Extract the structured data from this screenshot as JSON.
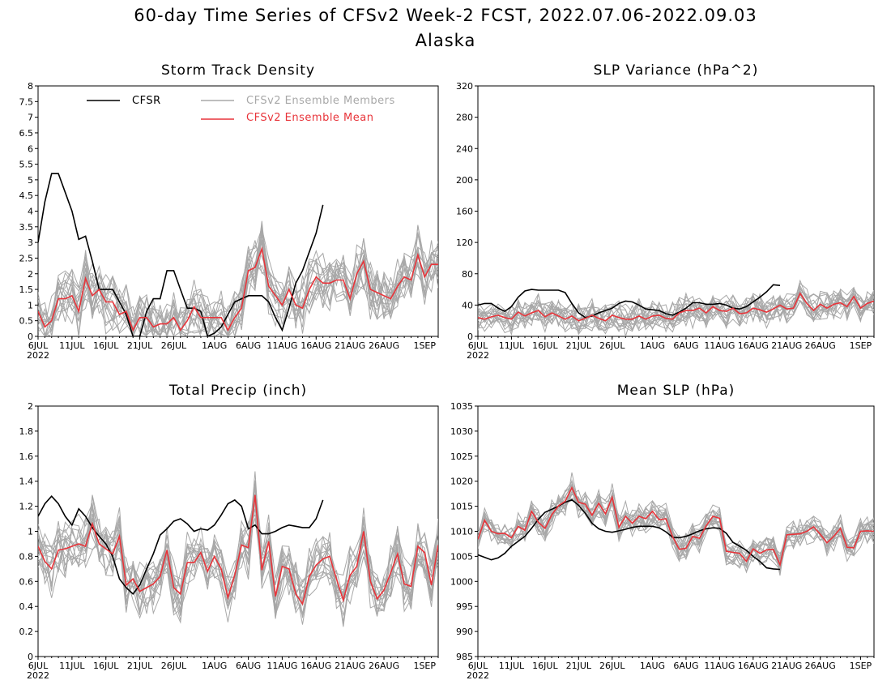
{
  "title": "60-day Time Series of CFSv2 Week-2 FCST, 2022.07.06-2022.09.03",
  "subtitle": "Alaska",
  "colors": {
    "cfsr": "#000000",
    "members": "#a8a8a8",
    "mean": "#e8343a"
  },
  "legend": {
    "cfsr": "CFSR",
    "members": "CFSv2 Ensemble Members",
    "mean": "CFSv2 Ensemble Mean"
  },
  "x_ticks": [
    "6JUL",
    "11JUL",
    "16JUL",
    "21JUL",
    "26JUL",
    "1AUG",
    "6AUG",
    "11AUG",
    "16AUG",
    "21AUG",
    "26AUG",
    "1SEP"
  ],
  "x_tick_days": [
    0,
    5,
    10,
    15,
    20,
    26,
    31,
    36,
    41,
    46,
    51,
    57
  ],
  "year_label": "2022",
  "chart_data": [
    {
      "type": "line",
      "title": "Storm Track Density",
      "ylim": [
        0,
        8
      ],
      "yticks": [
        "0",
        "0.5",
        "1",
        "1.5",
        "2",
        "2.5",
        "3",
        "3.5",
        "4",
        "4.5",
        "5",
        "5.5",
        "6",
        "6.5",
        "7",
        "7.5",
        "8"
      ],
      "x_days": [
        0,
        59
      ],
      "has_legend": true,
      "series": [
        {
          "name": "CFSR",
          "x": [
            0,
            1,
            2,
            3,
            4,
            5,
            6,
            7,
            8,
            9,
            10,
            11,
            12,
            13,
            14,
            15,
            16,
            17,
            18,
            19,
            20,
            21,
            22,
            23,
            24,
            25,
            26,
            27,
            28,
            29,
            30,
            31,
            32,
            33,
            34,
            35,
            36,
            37,
            38,
            39,
            40,
            41,
            42
          ],
          "values": [
            3.0,
            4.3,
            5.2,
            5.2,
            4.6,
            4.0,
            3.1,
            3.2,
            2.4,
            1.5,
            1.5,
            1.5,
            1.1,
            0.7,
            0.0,
            0.0,
            0.8,
            1.2,
            1.2,
            2.1,
            2.1,
            1.5,
            0.9,
            0.9,
            0.8,
            0.0,
            0.1,
            0.3,
            0.7,
            1.1,
            1.2,
            1.3,
            1.3,
            1.3,
            1.1,
            0.6,
            0.2,
            0.9,
            1.7,
            2.1,
            2.7,
            3.3,
            4.2
          ]
        },
        {
          "name": "CFSv2 Ensemble Mean",
          "x": [
            0,
            1,
            2,
            3,
            4,
            5,
            6,
            7,
            8,
            9,
            10,
            11,
            12,
            13,
            14,
            15,
            16,
            17,
            18,
            19,
            20,
            21,
            22,
            23,
            24,
            25,
            26,
            27,
            28,
            29,
            30,
            31,
            32,
            33,
            34,
            35,
            36,
            37,
            38,
            39,
            40,
            41,
            42,
            43,
            44,
            45,
            46,
            47,
            48,
            49,
            50,
            51,
            52,
            53,
            54,
            55,
            56,
            57,
            58,
            59
          ],
          "values": [
            0.8,
            0.3,
            0.5,
            1.2,
            1.2,
            1.3,
            0.8,
            1.85,
            1.3,
            1.5,
            1.1,
            1.1,
            0.7,
            0.8,
            0.2,
            0.6,
            0.6,
            0.3,
            0.4,
            0.4,
            0.6,
            0.2,
            0.5,
            0.95,
            0.6,
            0.6,
            0.6,
            0.6,
            0.2,
            0.6,
            0.9,
            2.1,
            2.2,
            2.8,
            1.6,
            1.3,
            1.0,
            1.5,
            1.0,
            0.9,
            1.5,
            1.9,
            1.7,
            1.7,
            1.8,
            1.8,
            1.2,
            2.0,
            2.4,
            1.5,
            1.4,
            1.3,
            1.2,
            1.6,
            1.9,
            1.8,
            2.6,
            1.9,
            2.3,
            2.3
          ]
        }
      ]
    },
    {
      "type": "line",
      "title": "SLP Variance (hPa^2)",
      "ylim": [
        0,
        320
      ],
      "yticks": [
        "0",
        "40",
        "80",
        "120",
        "160",
        "200",
        "240",
        "280",
        "320"
      ],
      "x_days": [
        0,
        59
      ],
      "has_legend": false,
      "series": [
        {
          "name": "CFSR",
          "x": [
            0,
            1,
            2,
            3,
            4,
            5,
            6,
            7,
            8,
            9,
            10,
            11,
            12,
            13,
            14,
            15,
            16,
            17,
            18,
            19,
            20,
            21,
            22,
            23,
            24,
            25,
            26,
            27,
            28,
            29,
            30,
            31,
            32,
            33,
            34,
            35,
            36,
            37,
            38,
            39,
            40,
            41,
            42,
            43,
            44,
            45
          ],
          "values": [
            40,
            42,
            42,
            36,
            32,
            38,
            50,
            58,
            60,
            59,
            59,
            59,
            59,
            56,
            42,
            30,
            24,
            26,
            30,
            33,
            36,
            42,
            45,
            44,
            40,
            35,
            34,
            33,
            29,
            27,
            31,
            36,
            43,
            43,
            41,
            41,
            42,
            40,
            36,
            35,
            38,
            44,
            50,
            57,
            66,
            65
          ]
        },
        {
          "name": "CFSv2 Ensemble Mean",
          "x": [
            0,
            1,
            2,
            3,
            4,
            5,
            6,
            7,
            8,
            9,
            10,
            11,
            12,
            13,
            14,
            15,
            16,
            17,
            18,
            19,
            20,
            21,
            22,
            23,
            24,
            25,
            26,
            27,
            28,
            29,
            30,
            31,
            32,
            33,
            34,
            35,
            36,
            37,
            38,
            39,
            40,
            41,
            42,
            43,
            44,
            45,
            46,
            47,
            48,
            49,
            50,
            51,
            52,
            53,
            54,
            55,
            56,
            57,
            58,
            59
          ],
          "values": [
            24,
            22,
            25,
            27,
            24,
            22,
            31,
            26,
            30,
            33,
            25,
            30,
            26,
            22,
            26,
            20,
            23,
            27,
            23,
            20,
            27,
            24,
            22,
            22,
            26,
            22,
            26,
            27,
            23,
            22,
            30,
            33,
            33,
            36,
            30,
            38,
            33,
            32,
            36,
            29,
            30,
            36,
            34,
            31,
            35,
            40,
            35,
            36,
            55,
            42,
            33,
            41,
            36,
            41,
            43,
            38,
            51,
            36,
            42,
            45
          ]
        }
      ]
    },
    {
      "type": "line",
      "title": "Total Precip (inch)",
      "ylim": [
        0,
        2
      ],
      "yticks": [
        "0",
        "0.2",
        "0.4",
        "0.6",
        "0.8",
        "1",
        "1.2",
        "1.4",
        "1.6",
        "1.8",
        "2"
      ],
      "x_days": [
        0,
        59
      ],
      "has_legend": false,
      "series": [
        {
          "name": "CFSR",
          "x": [
            0,
            1,
            2,
            3,
            4,
            5,
            6,
            7,
            8,
            9,
            10,
            11,
            12,
            13,
            14,
            15,
            16,
            17,
            18,
            19,
            20,
            21,
            22,
            23,
            24,
            25,
            26,
            27,
            28,
            29,
            30,
            31,
            32,
            33,
            34,
            35,
            36,
            37,
            38,
            39,
            40,
            41,
            42
          ],
          "values": [
            1.12,
            1.22,
            1.28,
            1.22,
            1.12,
            1.05,
            1.18,
            1.12,
            1.03,
            0.96,
            0.9,
            0.8,
            0.62,
            0.55,
            0.5,
            0.57,
            0.7,
            0.82,
            0.97,
            1.02,
            1.08,
            1.1,
            1.06,
            1.0,
            1.02,
            1.01,
            1.05,
            1.13,
            1.22,
            1.25,
            1.2,
            1.02,
            1.05,
            0.98,
            0.98,
            1.0,
            1.03,
            1.05,
            1.04,
            1.03,
            1.03,
            1.1,
            1.25
          ]
        },
        {
          "name": "CFSv2 Ensemble Mean",
          "x": [
            0,
            1,
            2,
            3,
            4,
            5,
            6,
            7,
            8,
            9,
            10,
            11,
            12,
            13,
            14,
            15,
            16,
            17,
            18,
            19,
            20,
            21,
            22,
            23,
            24,
            25,
            26,
            27,
            28,
            29,
            30,
            31,
            32,
            33,
            34,
            35,
            36,
            37,
            38,
            39,
            40,
            41,
            42,
            43,
            44,
            45,
            46,
            47,
            48,
            49,
            50,
            51,
            52,
            53,
            54,
            55,
            56,
            57,
            58,
            59
          ],
          "values": [
            0.88,
            0.76,
            0.7,
            0.85,
            0.86,
            0.88,
            0.9,
            0.88,
            1.06,
            0.9,
            0.86,
            0.82,
            0.96,
            0.57,
            0.62,
            0.52,
            0.55,
            0.58,
            0.64,
            0.85,
            0.55,
            0.5,
            0.75,
            0.75,
            0.83,
            0.68,
            0.8,
            0.7,
            0.47,
            0.65,
            0.89,
            0.87,
            1.29,
            0.69,
            0.92,
            0.48,
            0.72,
            0.7,
            0.5,
            0.42,
            0.64,
            0.73,
            0.78,
            0.8,
            0.62,
            0.45,
            0.65,
            0.72,
            1.0,
            0.6,
            0.46,
            0.53,
            0.67,
            0.82,
            0.58,
            0.56,
            0.88,
            0.83,
            0.57,
            0.89
          ]
        }
      ]
    },
    {
      "type": "line",
      "title": "Mean SLP (hPa)",
      "ylim": [
        985,
        1035
      ],
      "yticks": [
        "985",
        "990",
        "995",
        "1000",
        "1005",
        "1010",
        "1015",
        "1020",
        "1025",
        "1030",
        "1035"
      ],
      "x_days": [
        0,
        59
      ],
      "has_legend": false,
      "series": [
        {
          "name": "CFSR",
          "x": [
            0,
            1,
            2,
            3,
            4,
            5,
            6,
            7,
            8,
            9,
            10,
            11,
            12,
            13,
            14,
            15,
            16,
            17,
            18,
            19,
            20,
            21,
            22,
            23,
            24,
            25,
            26,
            27,
            28,
            29,
            30,
            31,
            32,
            33,
            34,
            35,
            36,
            37,
            38,
            39,
            40,
            41,
            42,
            43,
            44,
            45
          ],
          "values": [
            1005.3,
            1004.8,
            1004.3,
            1004.7,
            1005.6,
            1007.0,
            1008.0,
            1009.0,
            1010.6,
            1012.4,
            1013.8,
            1014.4,
            1015.0,
            1015.8,
            1016.3,
            1015.2,
            1013.6,
            1011.6,
            1010.5,
            1010.0,
            1009.8,
            1010.1,
            1010.4,
            1010.8,
            1011.0,
            1011.0,
            1011.0,
            1010.7,
            1009.9,
            1008.8,
            1008.7,
            1009.0,
            1009.5,
            1010.1,
            1010.5,
            1010.7,
            1010.6,
            1009.6,
            1007.8,
            1007.0,
            1006.2,
            1005.0,
            1004.0,
            1002.7,
            1002.5,
            1002.4
          ]
        },
        {
          "name": "CFSv2 Ensemble Mean",
          "x": [
            0,
            1,
            2,
            3,
            4,
            5,
            6,
            7,
            8,
            9,
            10,
            11,
            12,
            13,
            14,
            15,
            16,
            17,
            18,
            19,
            20,
            21,
            22,
            23,
            24,
            25,
            26,
            27,
            28,
            29,
            30,
            31,
            32,
            33,
            34,
            35,
            36,
            37,
            38,
            39,
            40,
            41,
            42,
            43,
            44,
            45,
            46,
            47,
            48,
            49,
            50,
            51,
            52,
            53,
            54,
            55,
            56,
            57,
            58,
            59
          ],
          "values": [
            1008.4,
            1012.2,
            1010.0,
            1009.5,
            1009.6,
            1008.7,
            1011.0,
            1010.2,
            1014.0,
            1011.8,
            1010.6,
            1013.3,
            1015.1,
            1016.0,
            1018.7,
            1015.8,
            1015.4,
            1013.2,
            1015.6,
            1013.5,
            1016.8,
            1010.8,
            1013.0,
            1011.6,
            1013.0,
            1012.5,
            1014.0,
            1012.3,
            1012.5,
            1008.9,
            1006.4,
            1006.6,
            1009.0,
            1008.6,
            1011.1,
            1013.0,
            1012.6,
            1006.0,
            1005.8,
            1005.6,
            1004.0,
            1006.5,
            1005.6,
            1006.3,
            1006.4,
            1003.3,
            1009.3,
            1009.4,
            1009.5,
            1010.0,
            1010.9,
            1009.4,
            1007.7,
            1009.0,
            1010.6,
            1006.8,
            1006.7,
            1010.0,
            1010.1,
            1010.0
          ]
        }
      ]
    }
  ]
}
